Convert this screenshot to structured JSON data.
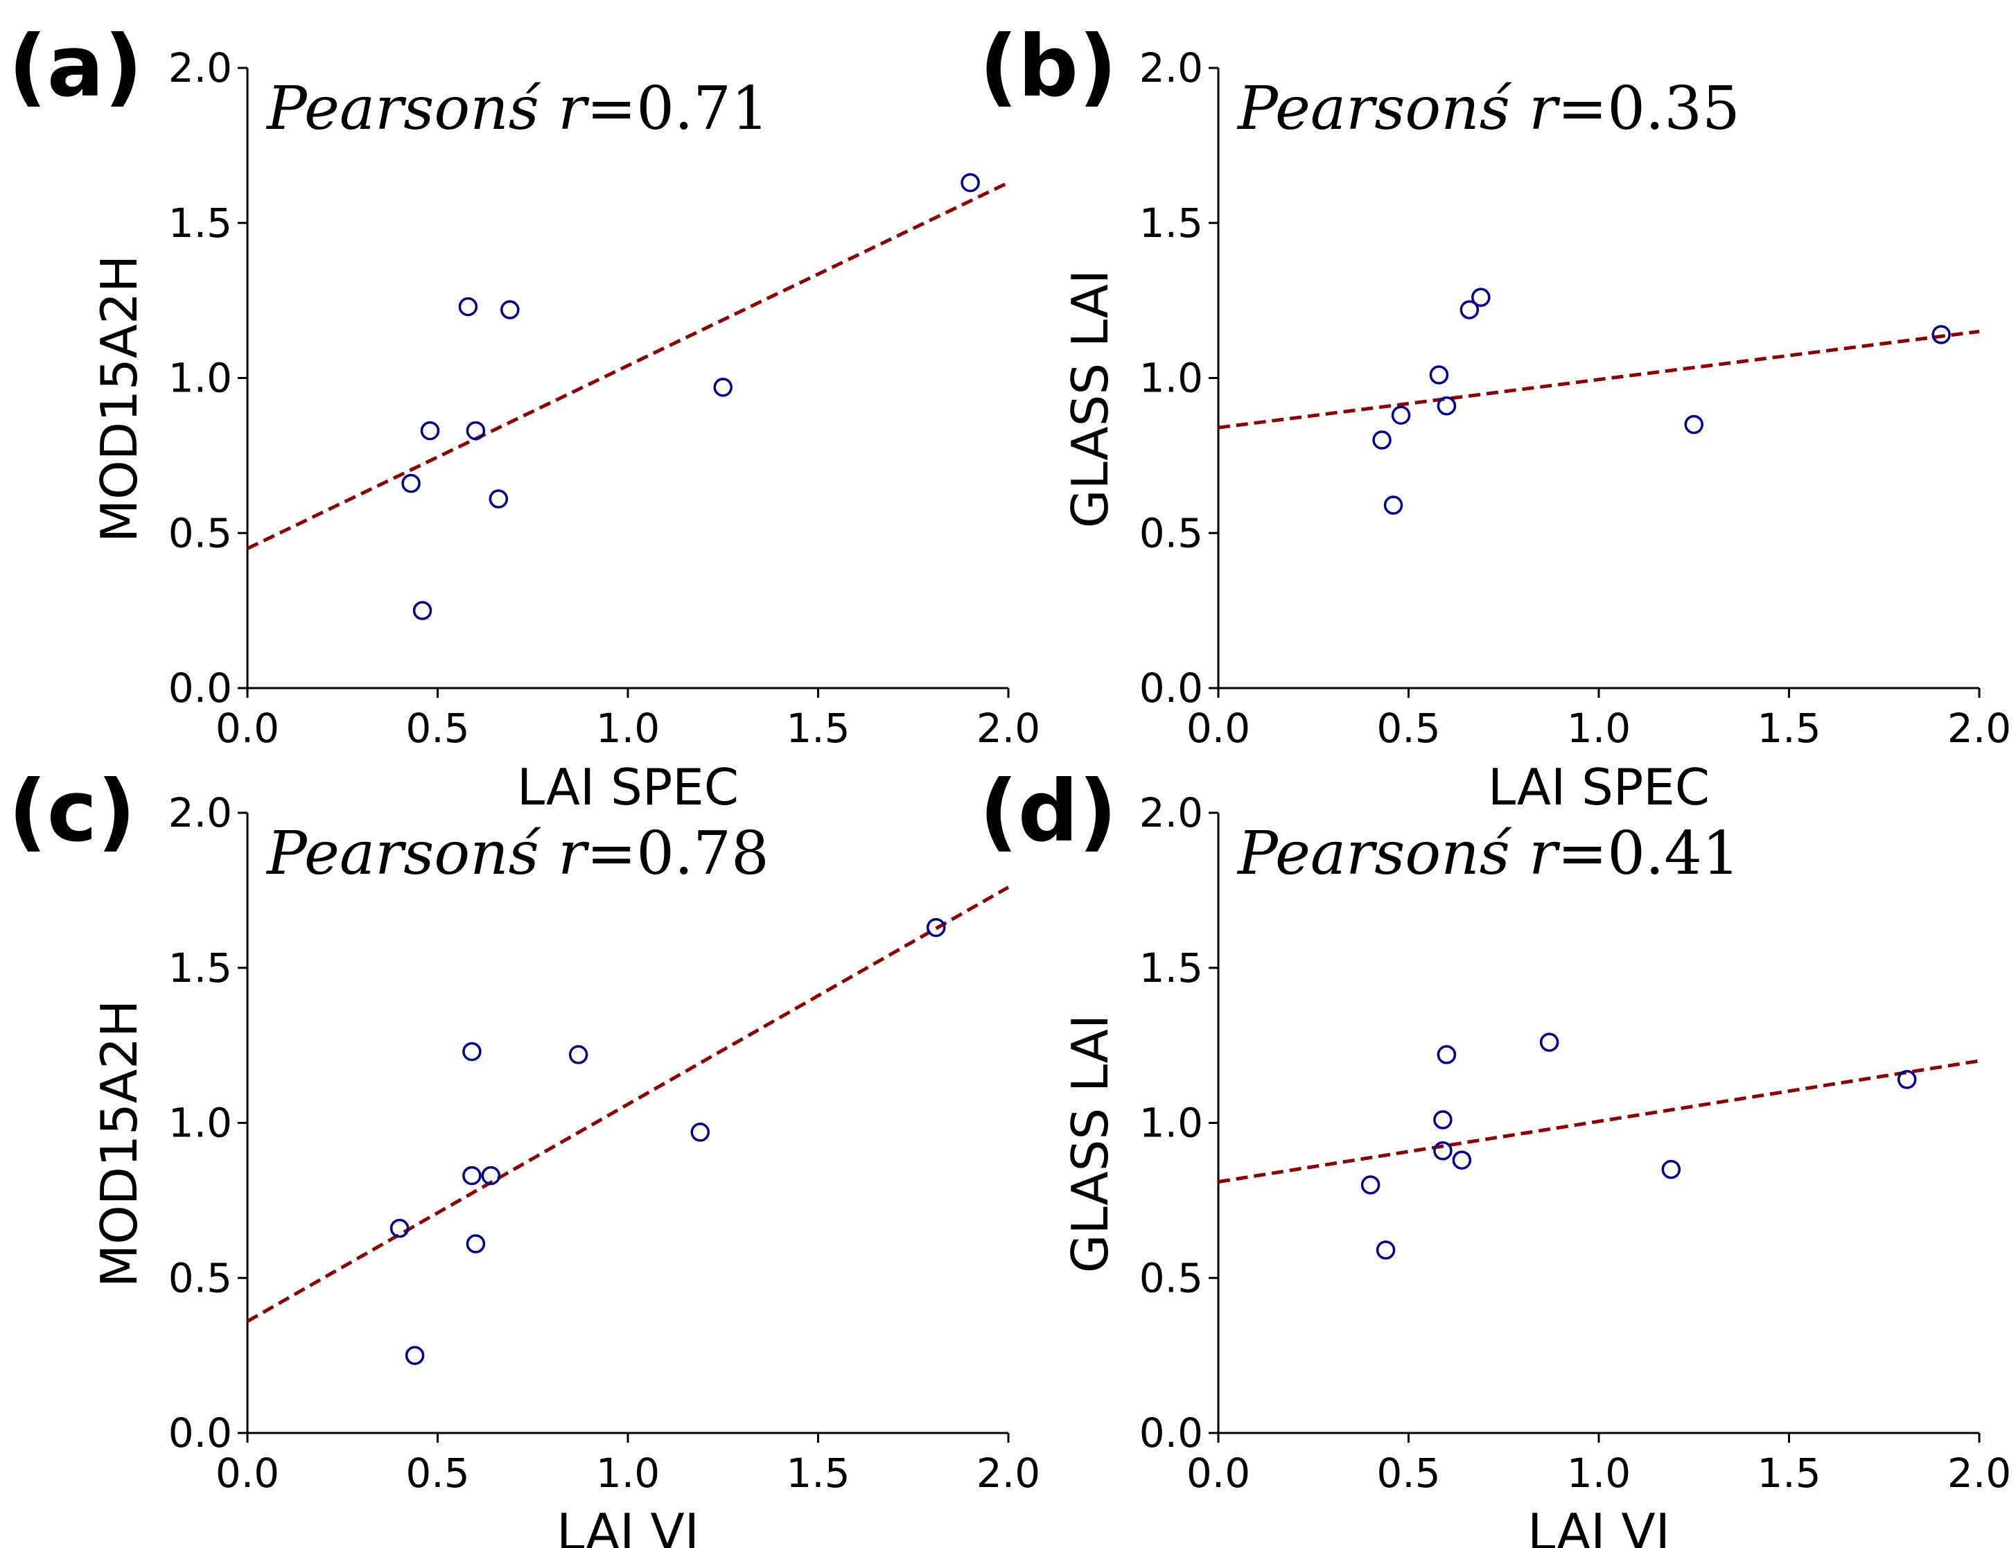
{
  "chart_data": [
    {
      "panel": "(a)",
      "type": "scatter",
      "xlabel": "LAI SPEC",
      "ylabel": "MOD15A2H",
      "xlim": [
        0.0,
        2.0
      ],
      "ylim": [
        0.0,
        2.0
      ],
      "xticks": [
        "0.0",
        "0.5",
        "1.0",
        "1.5",
        "2.0"
      ],
      "yticks": [
        "0.0",
        "0.5",
        "1.0",
        "1.5",
        "2.0"
      ],
      "annotation": {
        "label": "Pearsonś",
        "var": "r",
        "eq": "=",
        "value": "0.71"
      },
      "points": [
        {
          "x": 0.43,
          "y": 0.66
        },
        {
          "x": 0.46,
          "y": 0.25
        },
        {
          "x": 0.48,
          "y": 0.83
        },
        {
          "x": 0.58,
          "y": 1.23
        },
        {
          "x": 0.6,
          "y": 0.83
        },
        {
          "x": 0.66,
          "y": 0.61
        },
        {
          "x": 0.69,
          "y": 1.22
        },
        {
          "x": 1.25,
          "y": 0.97
        },
        {
          "x": 1.9,
          "y": 1.63
        }
      ],
      "fit_line": {
        "x0": 0.0,
        "y0": 0.45,
        "x1": 2.0,
        "y1": 1.63
      }
    },
    {
      "panel": "(b)",
      "type": "scatter",
      "xlabel": "LAI SPEC",
      "ylabel": "GLASS LAI",
      "xlim": [
        0.0,
        2.0
      ],
      "ylim": [
        0.0,
        2.0
      ],
      "xticks": [
        "0.0",
        "0.5",
        "1.0",
        "1.5",
        "2.0"
      ],
      "yticks": [
        "0.0",
        "0.5",
        "1.0",
        "1.5",
        "2.0"
      ],
      "annotation": {
        "label": "Pearsonś",
        "var": "r",
        "eq": "=",
        "value": "0.35"
      },
      "points": [
        {
          "x": 0.43,
          "y": 0.8
        },
        {
          "x": 0.46,
          "y": 0.59
        },
        {
          "x": 0.48,
          "y": 0.88
        },
        {
          "x": 0.58,
          "y": 1.01
        },
        {
          "x": 0.6,
          "y": 0.91
        },
        {
          "x": 0.66,
          "y": 1.22
        },
        {
          "x": 0.69,
          "y": 1.26
        },
        {
          "x": 1.25,
          "y": 0.85
        },
        {
          "x": 1.9,
          "y": 1.14
        }
      ],
      "fit_line": {
        "x0": 0.0,
        "y0": 0.84,
        "x1": 2.0,
        "y1": 1.15
      }
    },
    {
      "panel": "(c)",
      "type": "scatter",
      "xlabel": "LAI VI",
      "ylabel": "MOD15A2H",
      "xlim": [
        0.0,
        2.0
      ],
      "ylim": [
        0.0,
        2.0
      ],
      "xticks": [
        "0.0",
        "0.5",
        "1.0",
        "1.5",
        "2.0"
      ],
      "yticks": [
        "0.0",
        "0.5",
        "1.0",
        "1.5",
        "2.0"
      ],
      "annotation": {
        "label": "Pearsonś",
        "var": "r",
        "eq": "=",
        "value": "0.78"
      },
      "points": [
        {
          "x": 0.4,
          "y": 0.66
        },
        {
          "x": 0.44,
          "y": 0.25
        },
        {
          "x": 0.59,
          "y": 1.23
        },
        {
          "x": 0.59,
          "y": 0.83
        },
        {
          "x": 0.6,
          "y": 0.61
        },
        {
          "x": 0.64,
          "y": 0.83
        },
        {
          "x": 0.87,
          "y": 1.22
        },
        {
          "x": 1.19,
          "y": 0.97
        },
        {
          "x": 1.81,
          "y": 1.63
        }
      ],
      "fit_line": {
        "x0": 0.0,
        "y0": 0.36,
        "x1": 2.0,
        "y1": 1.76
      }
    },
    {
      "panel": "(d)",
      "type": "scatter",
      "xlabel": "LAI VI",
      "ylabel": "GLASS LAI",
      "xlim": [
        0.0,
        2.0
      ],
      "ylim": [
        0.0,
        2.0
      ],
      "xticks": [
        "0.0",
        "0.5",
        "1.0",
        "1.5",
        "2.0"
      ],
      "yticks": [
        "0.0",
        "0.5",
        "1.0",
        "1.5",
        "2.0"
      ],
      "annotation": {
        "label": "Pearsonś",
        "var": "r",
        "eq": "=",
        "value": "0.41"
      },
      "points": [
        {
          "x": 0.4,
          "y": 0.8
        },
        {
          "x": 0.44,
          "y": 0.59
        },
        {
          "x": 0.59,
          "y": 1.01
        },
        {
          "x": 0.59,
          "y": 0.91
        },
        {
          "x": 0.6,
          "y": 1.22
        },
        {
          "x": 0.64,
          "y": 0.88
        },
        {
          "x": 0.87,
          "y": 1.26
        },
        {
          "x": 1.19,
          "y": 0.85
        },
        {
          "x": 1.81,
          "y": 1.14
        }
      ],
      "fit_line": {
        "x0": 0.0,
        "y0": 0.81,
        "x1": 2.0,
        "y1": 1.2
      }
    }
  ],
  "colors": {
    "points": "#00008b",
    "fit_line": "#8b0000",
    "axes": "#000000"
  }
}
